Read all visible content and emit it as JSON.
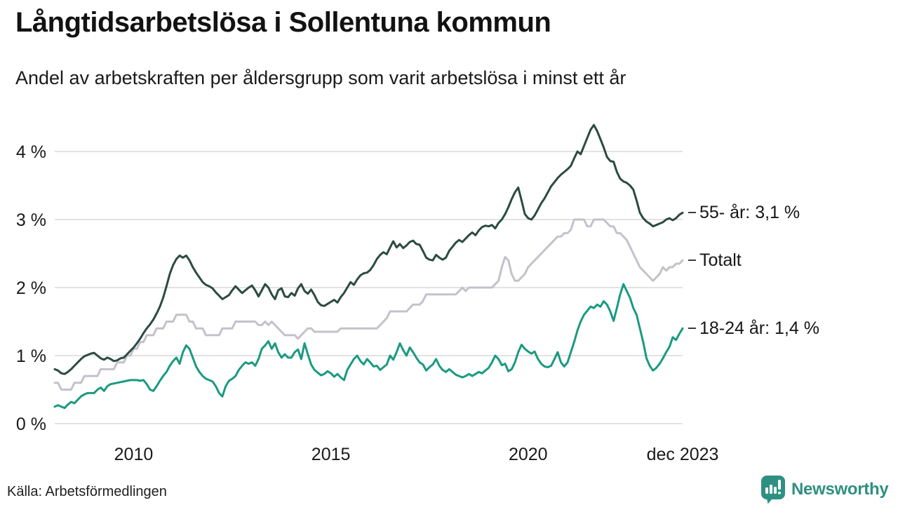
{
  "header": {
    "title": "Långtidsarbetslösa i Sollentuna kommun",
    "subtitle": "Andel av arbetskraften per åldersgrupp som varit arbetslösa i minst ett år"
  },
  "footer": {
    "source": "Källa: Arbetsförmedlingen",
    "brand": "Newsworthy",
    "brand_color": "#2e9081",
    "logo_icon": "bar-chart-pin-icon"
  },
  "chart_data": {
    "type": "line",
    "title": "Långtidsarbetslösa i Sollentuna kommun",
    "subtitle": "Andel av arbetskraften per åldersgrupp som varit arbetslösa i minst ett år",
    "unit": "%",
    "x_start": "2008-01",
    "x_end": "2023-12",
    "x_frequency": "monthly",
    "ylim": [
      0,
      4.5
    ],
    "grid": "horizontal",
    "grid_color": "#e4e2e3",
    "legend_position": "right-edge-annotations",
    "yticks": [
      {
        "value": 0,
        "label": "0 %"
      },
      {
        "value": 1,
        "label": "1 %"
      },
      {
        "value": 2,
        "label": "2 %"
      },
      {
        "value": 3,
        "label": "3 %"
      },
      {
        "value": 4,
        "label": "4 %"
      }
    ],
    "xticks": [
      {
        "index": 24,
        "label": "2010"
      },
      {
        "index": 84,
        "label": "2015"
      },
      {
        "index": 144,
        "label": "2020"
      },
      {
        "index": 191,
        "label": "dec 2023"
      }
    ],
    "series": [
      {
        "name": "Totalt",
        "end_label": "Totalt",
        "end_value": 2.4,
        "color": "#c5c1cb",
        "values": [
          0.6,
          0.6,
          0.5,
          0.5,
          0.5,
          0.5,
          0.6,
          0.6,
          0.6,
          0.7,
          0.7,
          0.7,
          0.7,
          0.7,
          0.8,
          0.8,
          0.8,
          0.8,
          0.8,
          0.9,
          0.9,
          0.9,
          1.0,
          1.0,
          1.1,
          1.1,
          1.2,
          1.2,
          1.3,
          1.3,
          1.3,
          1.4,
          1.4,
          1.4,
          1.5,
          1.5,
          1.5,
          1.6,
          1.6,
          1.6,
          1.6,
          1.5,
          1.5,
          1.4,
          1.4,
          1.4,
          1.3,
          1.3,
          1.3,
          1.3,
          1.3,
          1.4,
          1.4,
          1.4,
          1.4,
          1.5,
          1.5,
          1.5,
          1.5,
          1.5,
          1.5,
          1.5,
          1.45,
          1.45,
          1.5,
          1.45,
          1.5,
          1.45,
          1.4,
          1.35,
          1.3,
          1.3,
          1.3,
          1.3,
          1.25,
          1.3,
          1.35,
          1.4,
          1.4,
          1.35,
          1.35,
          1.35,
          1.35,
          1.35,
          1.35,
          1.35,
          1.35,
          1.4,
          1.4,
          1.4,
          1.4,
          1.4,
          1.4,
          1.4,
          1.4,
          1.4,
          1.4,
          1.4,
          1.4,
          1.45,
          1.5,
          1.55,
          1.65,
          1.65,
          1.65,
          1.65,
          1.65,
          1.65,
          1.7,
          1.75,
          1.75,
          1.75,
          1.8,
          1.9,
          1.9,
          1.9,
          1.9,
          1.9,
          1.9,
          1.9,
          1.9,
          1.9,
          1.9,
          1.95,
          2.0,
          1.95,
          2.0,
          2.0,
          2.0,
          2.0,
          2.0,
          2.0,
          2.0,
          2.0,
          2.05,
          2.1,
          2.3,
          2.45,
          2.4,
          2.2,
          2.1,
          2.1,
          2.15,
          2.2,
          2.3,
          2.35,
          2.4,
          2.45,
          2.5,
          2.55,
          2.6,
          2.65,
          2.7,
          2.75,
          2.75,
          2.8,
          2.8,
          2.85,
          3.0,
          3.0,
          3.0,
          3.0,
          2.9,
          2.9,
          3.0,
          3.0,
          3.0,
          3.0,
          2.95,
          2.9,
          2.9,
          2.8,
          2.8,
          2.75,
          2.7,
          2.6,
          2.5,
          2.4,
          2.3,
          2.25,
          2.2,
          2.15,
          2.1,
          2.15,
          2.2,
          2.3,
          2.25,
          2.3,
          2.3,
          2.35,
          2.35,
          2.4
        ]
      },
      {
        "name": "55- år",
        "end_label": "55- år: 3,1 %",
        "end_value": 3.1,
        "color": "#2b4b40",
        "values": [
          0.8,
          0.78,
          0.74,
          0.73,
          0.76,
          0.8,
          0.85,
          0.9,
          0.95,
          0.99,
          1.01,
          1.03,
          1.04,
          1.0,
          0.96,
          0.94,
          0.97,
          0.95,
          0.92,
          0.93,
          0.96,
          0.97,
          1.02,
          1.07,
          1.12,
          1.18,
          1.25,
          1.33,
          1.4,
          1.46,
          1.53,
          1.62,
          1.72,
          1.85,
          2.02,
          2.2,
          2.33,
          2.42,
          2.47,
          2.44,
          2.47,
          2.4,
          2.3,
          2.22,
          2.15,
          2.08,
          2.04,
          2.02,
          1.99,
          1.93,
          1.88,
          1.83,
          1.86,
          1.89,
          1.96,
          2.02,
          1.97,
          1.92,
          1.96,
          2.0,
          2.03,
          1.96,
          1.87,
          1.96,
          2.05,
          2.0,
          1.9,
          1.83,
          1.96,
          1.99,
          1.87,
          1.86,
          1.92,
          1.88,
          1.99,
          2.05,
          1.95,
          1.91,
          1.97,
          1.89,
          1.79,
          1.74,
          1.73,
          1.76,
          1.79,
          1.82,
          1.78,
          1.86,
          1.92,
          2.0,
          2.08,
          2.04,
          2.12,
          2.18,
          2.21,
          2.22,
          2.26,
          2.33,
          2.42,
          2.48,
          2.52,
          2.49,
          2.59,
          2.68,
          2.59,
          2.64,
          2.58,
          2.62,
          2.67,
          2.69,
          2.64,
          2.63,
          2.54,
          2.44,
          2.41,
          2.4,
          2.48,
          2.44,
          2.41,
          2.44,
          2.54,
          2.6,
          2.66,
          2.7,
          2.67,
          2.72,
          2.77,
          2.81,
          2.77,
          2.84,
          2.89,
          2.91,
          2.9,
          2.92,
          2.87,
          2.95,
          3.0,
          3.08,
          3.18,
          3.3,
          3.4,
          3.47,
          3.28,
          3.08,
          3.02,
          3.0,
          3.06,
          3.15,
          3.24,
          3.31,
          3.4,
          3.49,
          3.55,
          3.61,
          3.66,
          3.7,
          3.74,
          3.79,
          3.9,
          4.0,
          3.96,
          4.08,
          4.2,
          4.32,
          4.39,
          4.3,
          4.18,
          4.06,
          3.92,
          3.86,
          3.85,
          3.7,
          3.6,
          3.56,
          3.54,
          3.5,
          3.44,
          3.28,
          3.1,
          3.02,
          2.97,
          2.94,
          2.9,
          2.92,
          2.94,
          2.96,
          3.0,
          3.02,
          2.99,
          3.02,
          3.07,
          3.1
        ]
      },
      {
        "name": "18-24 år",
        "end_label": "18-24 år: 1,4 %",
        "end_value": 1.4,
        "color": "#1a9a81",
        "values": [
          0.25,
          0.27,
          0.25,
          0.23,
          0.28,
          0.32,
          0.3,
          0.35,
          0.4,
          0.43,
          0.45,
          0.45,
          0.45,
          0.5,
          0.53,
          0.48,
          0.55,
          0.58,
          0.59,
          0.6,
          0.61,
          0.62,
          0.63,
          0.64,
          0.64,
          0.64,
          0.63,
          0.64,
          0.58,
          0.5,
          0.48,
          0.55,
          0.63,
          0.7,
          0.76,
          0.85,
          0.92,
          0.97,
          0.88,
          1.05,
          1.15,
          1.1,
          0.97,
          0.84,
          0.76,
          0.7,
          0.66,
          0.64,
          0.62,
          0.55,
          0.45,
          0.4,
          0.55,
          0.63,
          0.66,
          0.7,
          0.79,
          0.85,
          0.9,
          0.88,
          0.9,
          0.85,
          0.95,
          1.1,
          1.15,
          1.21,
          1.1,
          1.18,
          1.05,
          0.97,
          1.02,
          0.97,
          0.97,
          1.05,
          1.09,
          0.95,
          1.18,
          1.02,
          0.87,
          0.79,
          0.75,
          0.71,
          0.73,
          0.77,
          0.74,
          0.69,
          0.73,
          0.68,
          0.64,
          0.79,
          0.87,
          0.95,
          1.0,
          0.92,
          0.87,
          0.95,
          0.9,
          0.84,
          0.85,
          0.79,
          0.83,
          0.87,
          1.0,
          0.94,
          1.05,
          1.18,
          1.08,
          1.0,
          1.12,
          1.05,
          0.97,
          0.9,
          0.87,
          0.78,
          0.83,
          0.87,
          0.95,
          0.85,
          0.79,
          0.76,
          0.8,
          0.76,
          0.72,
          0.7,
          0.68,
          0.7,
          0.73,
          0.7,
          0.73,
          0.76,
          0.74,
          0.78,
          0.82,
          0.9,
          1.0,
          0.95,
          0.86,
          0.88,
          0.77,
          0.8,
          0.9,
          1.05,
          1.16,
          1.1,
          1.06,
          1.03,
          1.06,
          0.95,
          0.88,
          0.84,
          0.83,
          0.85,
          0.95,
          1.05,
          0.9,
          0.84,
          0.9,
          1.05,
          1.2,
          1.37,
          1.5,
          1.6,
          1.66,
          1.72,
          1.7,
          1.75,
          1.72,
          1.8,
          1.75,
          1.65,
          1.51,
          1.7,
          1.9,
          2.05,
          1.95,
          1.85,
          1.7,
          1.6,
          1.4,
          1.2,
          0.96,
          0.85,
          0.78,
          0.82,
          0.88,
          0.96,
          1.05,
          1.13,
          1.27,
          1.23,
          1.32,
          1.4
        ]
      }
    ]
  }
}
